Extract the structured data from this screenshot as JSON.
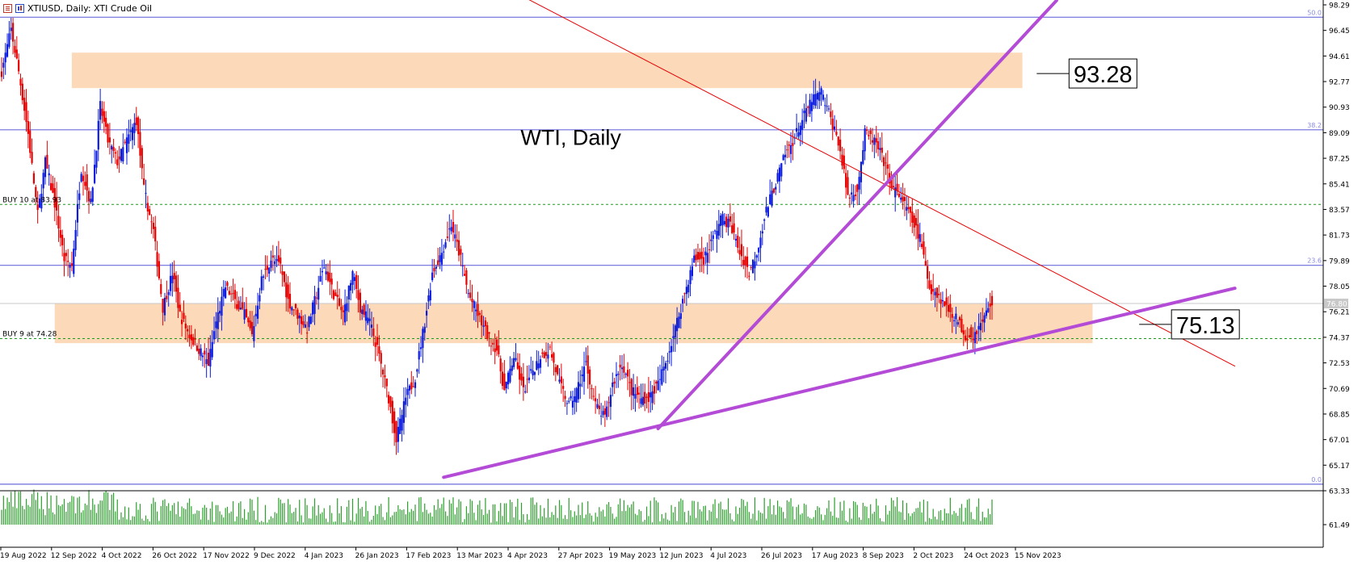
{
  "header": {
    "symbol_text": "XTIUSD, Daily:  XTI Crude Oil",
    "list_icon": "list-icon",
    "chart_icon": "candles-icon"
  },
  "chart_data": {
    "type": "candlestick",
    "title": "WTI, Daily",
    "symbol": "XTIUSD",
    "timeframe": "Daily",
    "colors": {
      "bull": "#0b1bdc",
      "bear": "#e60000",
      "volume": "#2e9e2e",
      "zone": "#fcd9b8",
      "trendline": "#b34bd6",
      "resistance_line": "#e60000",
      "fib_line": "#6b6bdc",
      "order_line": "#1a9a1a",
      "price_line": "#c8c8c8"
    },
    "ylim": [
      63.33,
      98.29
    ],
    "y_ticks": [
      98.29,
      96.45,
      94.61,
      92.77,
      90.93,
      89.09,
      87.25,
      85.41,
      83.57,
      81.73,
      79.89,
      78.05,
      76.21,
      74.37,
      72.53,
      70.69,
      68.85,
      67.01,
      65.17,
      63.33,
      61.49
    ],
    "x_ticks": [
      "19 Aug 2022",
      "12 Sep 2022",
      "4 Oct 2022",
      "26 Oct 2022",
      "17 Nov 2022",
      "9 Dec 2022",
      "4 Jan 2023",
      "26 Jan 2023",
      "17 Feb 2023",
      "13 Mar 2023",
      "4 Apr 2023",
      "27 Apr 2023",
      "19 May 2023",
      "12 Jun 2023",
      "4 Jul 2023",
      "26 Jul 2023",
      "17 Aug 2023",
      "8 Sep 2023",
      "2 Oct 2023",
      "24 Oct 2023",
      "15 Nov 2023"
    ],
    "current_price": "76.80",
    "price_path": [
      [
        0,
        93.5
      ],
      [
        5,
        96.5
      ],
      [
        9,
        93.5
      ],
      [
        14,
        89
      ],
      [
        19,
        83.2
      ],
      [
        23,
        87
      ],
      [
        28,
        84
      ],
      [
        33,
        80
      ],
      [
        37,
        79.5
      ],
      [
        42,
        86.5
      ],
      [
        47,
        84
      ],
      [
        52,
        91
      ],
      [
        56,
        88.5
      ],
      [
        61,
        87
      ],
      [
        66,
        88.5
      ],
      [
        71,
        90
      ],
      [
        75,
        85
      ],
      [
        80,
        82
      ],
      [
        85,
        76.5
      ],
      [
        90,
        79
      ],
      [
        94,
        76
      ],
      [
        99,
        74.5
      ],
      [
        104,
        73.5
      ],
      [
        109,
        72.5
      ],
      [
        113,
        75.5
      ],
      [
        118,
        78
      ],
      [
        123,
        77
      ],
      [
        128,
        76
      ],
      [
        132,
        74.5
      ],
      [
        137,
        78.5
      ],
      [
        142,
        80
      ],
      [
        147,
        79.5
      ],
      [
        151,
        77
      ],
      [
        156,
        76
      ],
      [
        161,
        75
      ],
      [
        166,
        77.5
      ],
      [
        170,
        79.5
      ],
      [
        175,
        77.5
      ],
      [
        180,
        76
      ],
      [
        185,
        79
      ],
      [
        189,
        76.5
      ],
      [
        194,
        75.5
      ],
      [
        199,
        73
      ],
      [
        204,
        70
      ],
      [
        208,
        67
      ],
      [
        213,
        70
      ],
      [
        218,
        71.5
      ],
      [
        223,
        75.5
      ],
      [
        227,
        79
      ],
      [
        232,
        80.5
      ],
      [
        237,
        82.5
      ],
      [
        242,
        80
      ],
      [
        246,
        77.5
      ],
      [
        251,
        76
      ],
      [
        256,
        74.5
      ],
      [
        261,
        73.5
      ],
      [
        265,
        70.5
      ],
      [
        270,
        73
      ],
      [
        275,
        70.5
      ],
      [
        280,
        72
      ],
      [
        284,
        73
      ],
      [
        289,
        73.5
      ],
      [
        294,
        71
      ],
      [
        299,
        69.5
      ],
      [
        303,
        70.5
      ],
      [
        308,
        72.5
      ],
      [
        313,
        69.5
      ],
      [
        318,
        68.5
      ],
      [
        322,
        71
      ],
      [
        327,
        72.5
      ],
      [
        332,
        70.5
      ],
      [
        337,
        70
      ],
      [
        341,
        70
      ],
      [
        346,
        71
      ],
      [
        351,
        73
      ],
      [
        356,
        75.5
      ],
      [
        360,
        77.5
      ],
      [
        365,
        80
      ],
      [
        370,
        80
      ],
      [
        375,
        81.5
      ],
      [
        379,
        83
      ],
      [
        384,
        82.5
      ],
      [
        389,
        80.5
      ],
      [
        394,
        79
      ],
      [
        398,
        80.5
      ],
      [
        403,
        83.5
      ],
      [
        408,
        85.5
      ],
      [
        413,
        87.5
      ],
      [
        417,
        88.5
      ],
      [
        422,
        90
      ],
      [
        427,
        91.5
      ],
      [
        432,
        92
      ],
      [
        436,
        90.5
      ],
      [
        441,
        88.5
      ],
      [
        446,
        84.5
      ],
      [
        451,
        85
      ],
      [
        455,
        89
      ],
      [
        460,
        88.5
      ],
      [
        465,
        87
      ],
      [
        470,
        85
      ],
      [
        474,
        84.5
      ],
      [
        479,
        83
      ],
      [
        484,
        81.5
      ],
      [
        489,
        78
      ],
      [
        493,
        77.5
      ],
      [
        498,
        76.5
      ],
      [
        503,
        75.8
      ],
      [
        508,
        74.5
      ],
      [
        512,
        74.5
      ],
      [
        517,
        75.5
      ],
      [
        521,
        76.8
      ]
    ],
    "volume_min": 61.49,
    "volume_max": 63.6,
    "zones": [
      {
        "from_day": 37,
        "to_day": 538,
        "high": 94.85,
        "low": 92.3
      },
      {
        "from_day": 28,
        "to_day": 575,
        "high": 76.8,
        "low": 73.95
      }
    ],
    "horizontal_lines": [
      {
        "kind": "fib",
        "value": 97.4,
        "label": "50.0"
      },
      {
        "kind": "fib",
        "value": 89.3,
        "label": "38.2"
      },
      {
        "kind": "fib",
        "value": 79.55,
        "label": "23.6"
      },
      {
        "kind": "fib",
        "value": 63.8,
        "label": "0.0"
      },
      {
        "kind": "order",
        "value": 83.93,
        "label": "BUY 10 at 83.93"
      },
      {
        "kind": "order",
        "value": 74.28,
        "label": "BUY 9 at 74.28"
      }
    ],
    "trendlines": [
      {
        "kind": "resistance",
        "from": [
          276,
          98.8
        ],
        "to": [
          650,
          72.3
        ]
      },
      {
        "kind": "support",
        "from": [
          233,
          64.3
        ],
        "to": [
          650,
          77.9
        ]
      },
      {
        "kind": "support",
        "from": [
          346,
          67.8
        ],
        "to": [
          556,
          98.6
        ]
      }
    ],
    "annotations": [
      {
        "label": "93.28",
        "day": 566,
        "value": 93.35
      },
      {
        "label": "75.13",
        "day": 620,
        "value": 75.3
      }
    ]
  }
}
